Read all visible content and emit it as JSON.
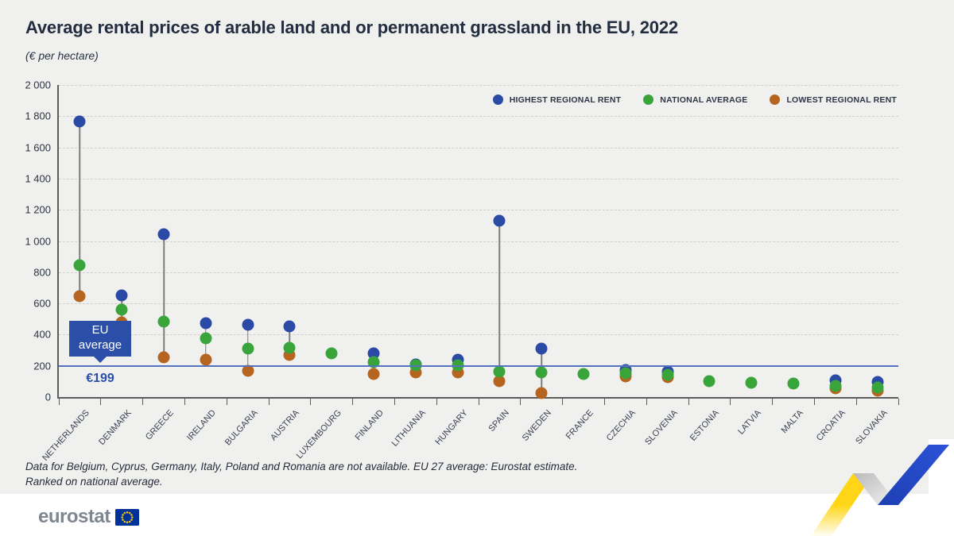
{
  "header": {
    "title": "Average rental prices of arable land and or permanent grassland in the EU, 2022",
    "subtitle": "(€ per hectare)"
  },
  "legend": [
    {
      "label": "HIGHEST REGIONAL RENT",
      "color": "#2b4aa5"
    },
    {
      "label": "NATIONAL AVERAGE",
      "color": "#39a43a"
    },
    {
      "label": "LOWEST REGIONAL RENT",
      "color": "#b5651f"
    }
  ],
  "eu_average": {
    "label_line1": "EU",
    "label_line2": "average",
    "value_label": "€199",
    "value": 199,
    "line_color": "#5472bd",
    "box_color": "#2b4ea8"
  },
  "footnotes": [
    "Data for Belgium, Cyprus, Germany, Italy, Poland and Romania are not available. EU 27 average: Eurostat estimate.",
    "Ranked on national average."
  ],
  "footer": {
    "brand": "eurostat"
  },
  "chart_data": {
    "type": "scatter",
    "title": "Average rental prices of arable land and or permanent grassland in the EU, 2022",
    "subtitle": "(€ per hectare)",
    "ylabel": "€ per hectare",
    "ylim": [
      0,
      2000
    ],
    "y_tick_step": 200,
    "y_tick_labels": [
      "0",
      "200",
      "400",
      "600",
      "800",
      "1 000",
      "1 200",
      "1 400",
      "1 600",
      "1 800",
      "2 000"
    ],
    "grid": "dashed horizontal",
    "legend_position": "top-right inside",
    "categories": [
      "NETHERLANDS",
      "DENMARK",
      "GREECE",
      "IRELAND",
      "BULGARIA",
      "AUSTRIA",
      "LUXEMBOURG",
      "FINLAND",
      "LITHUANIA",
      "HUNGARY",
      "SPAIN",
      "SWEDEN",
      "FRANCE",
      "CZECHIA",
      "SLOVENIA",
      "ESTONIA",
      "LATVIA",
      "MALTA",
      "CROATIA",
      "SLOVAKIA"
    ],
    "series": [
      {
        "name": "Highest regional rent",
        "color": "#2b4aa5",
        "values": [
          1765,
          650,
          1045,
          475,
          465,
          452,
          null,
          280,
          210,
          240,
          1130,
          310,
          null,
          172,
          164,
          null,
          null,
          null,
          105,
          95
        ]
      },
      {
        "name": "National average",
        "color": "#39a43a",
        "values": [
          845,
          560,
          485,
          378,
          312,
          315,
          280,
          225,
          205,
          205,
          165,
          158,
          150,
          152,
          144,
          100,
          90,
          86,
          71,
          61
        ]
      },
      {
        "name": "Lowest regional rent",
        "color": "#b5651f",
        "values": [
          645,
          478,
          255,
          240,
          168,
          272,
          null,
          150,
          160,
          157,
          100,
          25,
          null,
          130,
          126,
          null,
          null,
          null,
          54,
          40
        ]
      }
    ],
    "reference_line": {
      "label": "EU average",
      "value": 199,
      "value_label": "€199"
    }
  }
}
